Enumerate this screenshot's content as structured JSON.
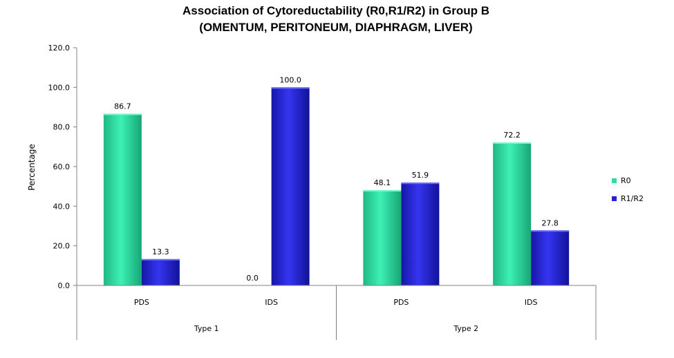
{
  "chart_data": {
    "type": "bar",
    "title": "Association of Cytoreductability (R0,R1/R2) in Group B",
    "subtitle": "(OMENTUM, PERITONEUM, DIAPHRAGM, LIVER)",
    "ylabel": "Percentage",
    "xlabel": "",
    "ylim": [
      0,
      120
    ],
    "yticks": [
      "0.0",
      "20.0",
      "40.0",
      "60.0",
      "80.0",
      "100.0",
      "120.0"
    ],
    "groups": [
      {
        "label": "Type 1",
        "categories": [
          "PDS",
          "IDS"
        ]
      },
      {
        "label": "Type 2",
        "categories": [
          "PDS",
          "IDS"
        ]
      }
    ],
    "series": [
      {
        "name": "R0",
        "color": "#2fdca0",
        "values": [
          86.7,
          0.0,
          48.1,
          72.2
        ],
        "labels": [
          "86.7",
          "0.0",
          "48.1",
          "72.2"
        ]
      },
      {
        "name": "R1/R2",
        "color": "#2424d6",
        "values": [
          13.3,
          100.0,
          51.9,
          27.8
        ],
        "labels": [
          "13.3",
          "100.0",
          "51.9",
          "27.8"
        ]
      }
    ],
    "legend_position": "right",
    "grid": false
  }
}
